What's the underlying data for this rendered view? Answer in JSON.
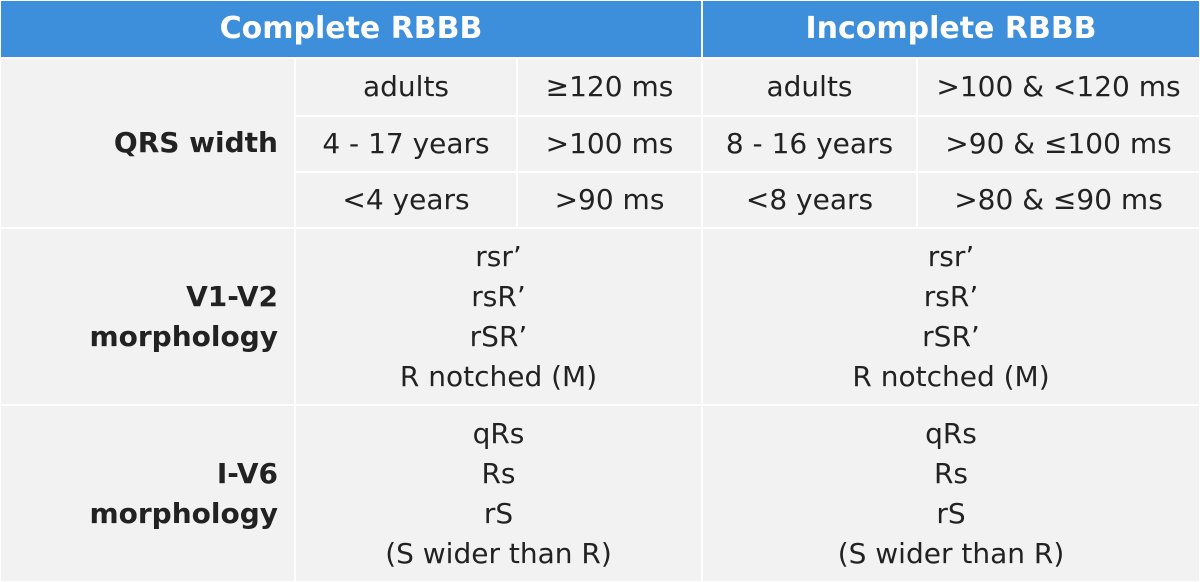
{
  "header": [
    "Complete RBBB",
    "Incomplete RBBB"
  ],
  "qrs": {
    "label": "QRS width",
    "rows": [
      [
        "adults",
        "≥120 ms",
        "adults",
        ">100 & <120 ms"
      ],
      [
        "4 - 17 years",
        ">100 ms",
        "8 - 16 years",
        ">90 & ≤100 ms"
      ],
      [
        "<4 years",
        ">90 ms",
        "<8 years",
        ">80 & ≤90 ms"
      ]
    ]
  },
  "morphology": [
    {
      "label": [
        "V1-V2",
        "morphology"
      ],
      "complete": [
        "rsr’",
        "rsR’",
        "rSR’",
        "R notched (M)"
      ],
      "incomplete": [
        "rsr’",
        "rsR’",
        "rSR’",
        "R notched (M)"
      ]
    },
    {
      "label": [
        "I-V6",
        "morphology"
      ],
      "complete": [
        "qRs",
        "Rs",
        "rS",
        "(S wider than R)"
      ],
      "incomplete": [
        "qRs",
        "Rs",
        "rS",
        "(S wider than R)"
      ]
    }
  ]
}
